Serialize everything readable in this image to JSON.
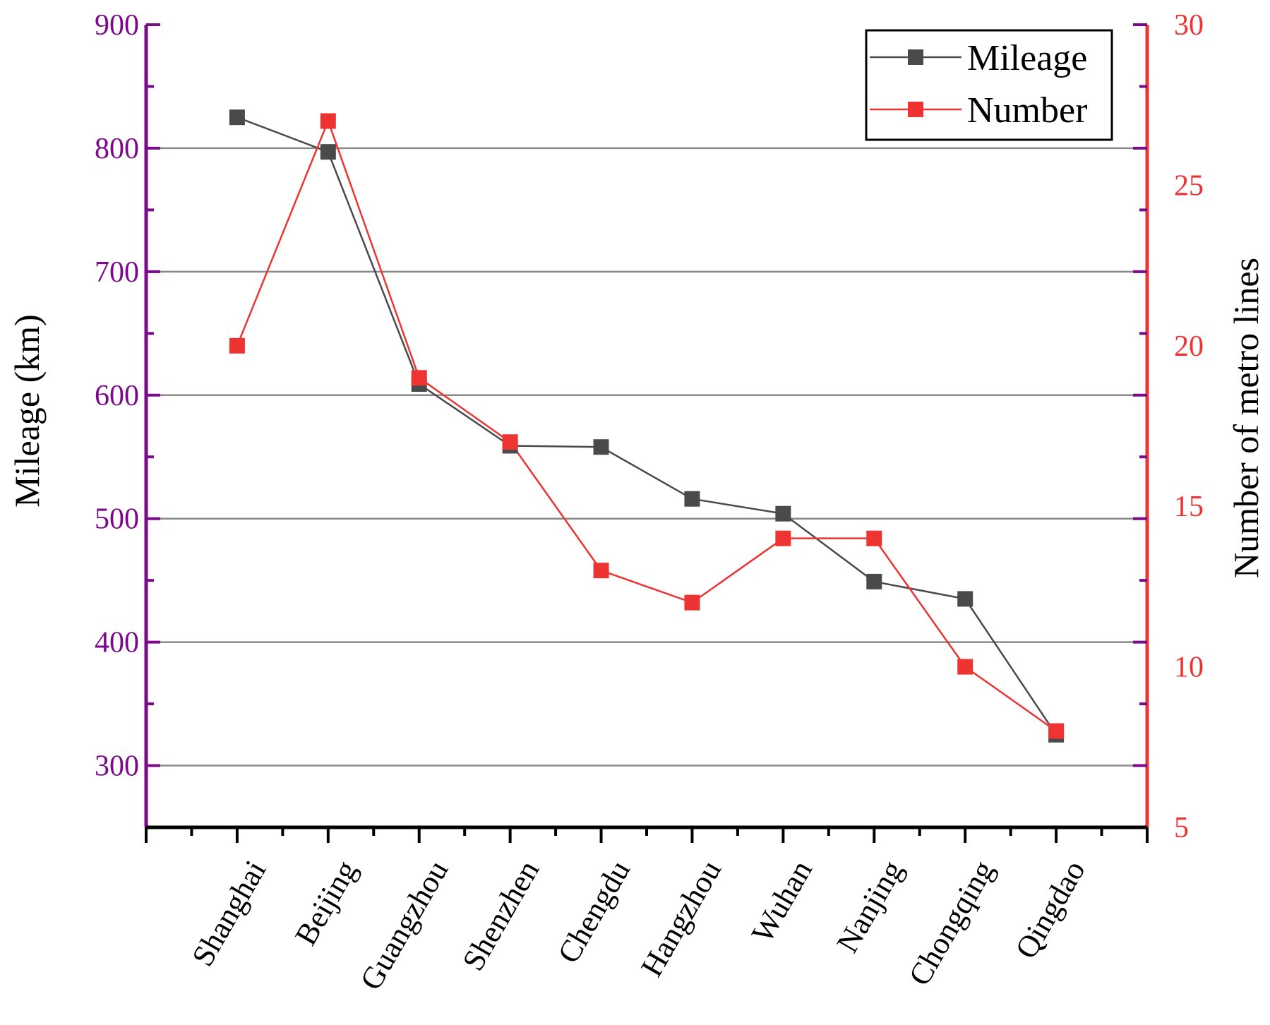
{
  "chart_data": {
    "type": "line",
    "categories": [
      "Shanghai",
      "Beijing",
      "Guangzhou",
      "Shenzhen",
      "Chengdu",
      "Hangzhou",
      "Wuhan",
      "Nanjing",
      "Chongqing",
      "Qingdao"
    ],
    "series": [
      {
        "name": "Mileage",
        "axis": "left",
        "color": "#4a4a4a",
        "marker": "square",
        "values": [
          825,
          797,
          609,
          559,
          558,
          516,
          504,
          449,
          435,
          325
        ]
      },
      {
        "name": "Number",
        "axis": "right",
        "color": "#ee3333",
        "marker": "square",
        "values": [
          20,
          27,
          19,
          17,
          13,
          12,
          14,
          14,
          10,
          8
        ]
      }
    ],
    "left_axis": {
      "label": "Mileage (km)",
      "range": [
        250,
        900
      ],
      "ticks": [
        300,
        400,
        500,
        600,
        700,
        800,
        900
      ],
      "color": "#7b0a8b"
    },
    "right_axis": {
      "label": "Number of metro lines",
      "range": [
        5,
        30
      ],
      "ticks": [
        5,
        10,
        15,
        20,
        25,
        30
      ],
      "color": "#ee3333"
    },
    "grid": true,
    "legend": {
      "position": "top-right",
      "entries": [
        "Mileage",
        "Number"
      ]
    }
  }
}
